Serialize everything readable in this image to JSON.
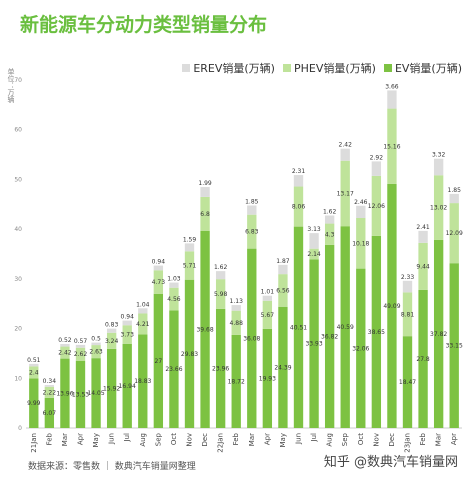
{
  "title": "新能源车分动力类型销量分布",
  "title_accent_chars": 4,
  "unit_label": "单位：万辆",
  "footer": "数据来源：零售数 ｜ 数典汽车销量网整理",
  "watermark": "知乎 @数典汽车销量网",
  "colors": {
    "ev": "#7dc242",
    "phev": "#bfe39a",
    "erev": "#dcdcdc",
    "title": "#6abf3f"
  },
  "chart_data": {
    "type": "bar",
    "stacked": true,
    "categories": [
      "21Jan",
      "Feb",
      "Mar",
      "Apr",
      "May",
      "Jun",
      "Jul",
      "Aug",
      "Sep",
      "Oct",
      "Nov",
      "Dec",
      "22Jan",
      "Feb",
      "Mar",
      "Apr",
      "May",
      "Jun",
      "Jul",
      "Aug",
      "Sep",
      "Oct",
      "Nov",
      "Dec",
      "23Jan",
      "Feb",
      "Mar",
      "Apr"
    ],
    "ylim": [
      0,
      70
    ],
    "yticks": [
      0,
      10,
      20,
      30,
      40,
      50,
      60,
      70
    ],
    "grid": false,
    "legend_position": "top-right",
    "series": [
      {
        "name": "EV销量(万辆)",
        "values": [
          9.99,
          6.07,
          13.96,
          13.53,
          14.05,
          15.92,
          16.94,
          18.83,
          27.0,
          23.66,
          29.83,
          39.68,
          23.96,
          18.72,
          36.08,
          19.93,
          24.39,
          40.51,
          33.93,
          36.82,
          40.59,
          32.06,
          38.65,
          49.09,
          18.47,
          27.8,
          37.82,
          33.15
        ]
      },
      {
        "name": "PHEV销量(万辆)",
        "values": [
          2.4,
          2.22,
          2.42,
          2.62,
          2.63,
          3.24,
          3.73,
          4.21,
          4.73,
          4.56,
          5.71,
          6.8,
          5.98,
          4.88,
          6.83,
          5.67,
          6.56,
          8.06,
          2.14,
          4.3,
          13.17,
          10.18,
          12.06,
          15.16,
          8.81,
          9.44,
          13.02,
          12.09
        ]
      },
      {
        "name": "EREV销量(万辆)",
        "values": [
          0.51,
          0.34,
          0.52,
          0.57,
          0.5,
          0.83,
          0.94,
          1.04,
          0.94,
          1.03,
          1.59,
          1.99,
          1.62,
          1.13,
          1.85,
          1.01,
          1.87,
          2.31,
          3.13,
          1.62,
          2.42,
          2.46,
          2.92,
          3.66,
          2.33,
          2.41,
          3.32,
          1.85
        ]
      }
    ]
  }
}
